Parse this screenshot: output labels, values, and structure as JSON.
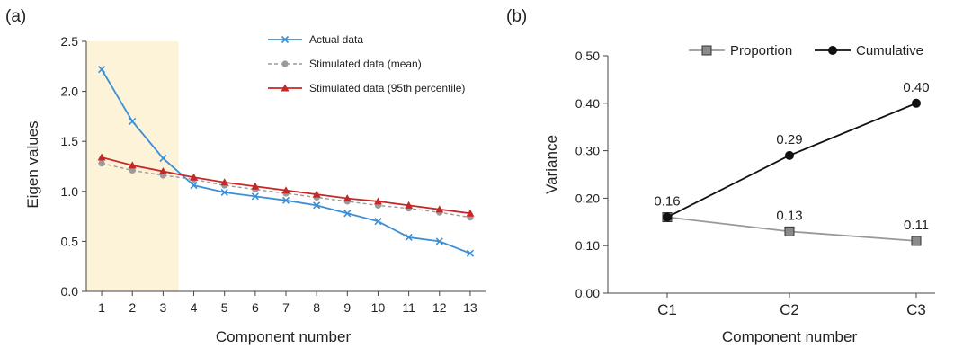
{
  "chart_data": [
    {
      "panel": "(a)",
      "type": "line",
      "xlabel": "Component number",
      "ylabel": "Eigen values",
      "x": [
        1,
        2,
        3,
        4,
        5,
        6,
        7,
        8,
        9,
        10,
        11,
        12,
        13
      ],
      "xlim": [
        0.5,
        13.5
      ],
      "ylim": [
        0,
        2.5
      ],
      "yticks": [
        "0.0",
        "0.5",
        "1.0",
        "1.5",
        "2.0",
        "2.5"
      ],
      "shaded_region": [
        0.5,
        3.5
      ],
      "shade_color": "#fdf3d8",
      "legend_position": "top-right",
      "series": [
        {
          "name": "Actual data",
          "color": "#3a8fd6",
          "marker": "x",
          "values": [
            2.22,
            1.7,
            1.33,
            1.06,
            0.99,
            0.95,
            0.91,
            0.86,
            0.78,
            0.7,
            0.54,
            0.5,
            0.38
          ]
        },
        {
          "name": "Stimulated data (mean)",
          "color": "#9a9a9a",
          "marker": "circle",
          "dashed": true,
          "values": [
            1.28,
            1.21,
            1.16,
            1.12,
            1.06,
            1.02,
            0.98,
            0.94,
            0.9,
            0.86,
            0.83,
            0.79,
            0.74
          ]
        },
        {
          "name": "Stimulated data (95th percentile)",
          "color": "#c62828",
          "marker": "triangle",
          "values": [
            1.34,
            1.26,
            1.2,
            1.14,
            1.09,
            1.05,
            1.01,
            0.97,
            0.93,
            0.9,
            0.86,
            0.82,
            0.78
          ]
        }
      ]
    },
    {
      "panel": "(b)",
      "type": "line",
      "xlabel": "Component number",
      "ylabel": "Variance",
      "categories": [
        "C1",
        "C2",
        "C3"
      ],
      "ylim": [
        0,
        0.5
      ],
      "yticks": [
        "0.00",
        "0.10",
        "0.20",
        "0.30",
        "0.40",
        "0.50"
      ],
      "legend_position": "top",
      "series": [
        {
          "name": "Proportion",
          "color": "#999999",
          "marker": "square",
          "values": [
            0.16,
            0.13,
            0.11
          ],
          "labels": [
            "0.16",
            "0.13",
            "0.11"
          ]
        },
        {
          "name": "Cumulative",
          "color": "#111111",
          "marker": "circle",
          "values": [
            0.16,
            0.29,
            0.4
          ],
          "labels": [
            "",
            "0.29",
            "0.40"
          ]
        }
      ]
    }
  ]
}
